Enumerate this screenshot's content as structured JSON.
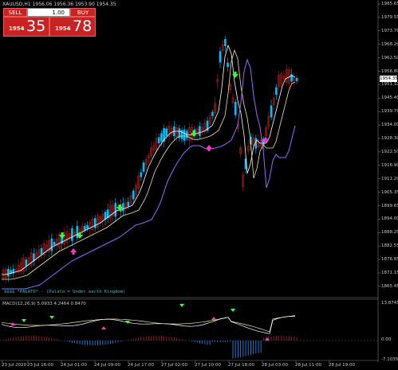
{
  "header": {
    "symbol_line": "XAUUSD,H1  1956.06 1956.36 1953.90 1954.35"
  },
  "trade_panel": {
    "sell_label": "SELL",
    "buy_label": "BUY",
    "lot": "1.00",
    "sell_small": "1954",
    "sell_big": "35",
    "buy_small": "1954",
    "buy_big": "78"
  },
  "price_axis": [
    "1985.65",
    "1979.55",
    "1973.70",
    "1968.20",
    "1962.50",
    "1956.80",
    "1951.10",
    "1945.40",
    "1939.70",
    "1934.00",
    "1928.30",
    "1922.50",
    "1916.90",
    "1911.20",
    "1905.35",
    "1899.65",
    "1894.00",
    "1888.25",
    "1882.55",
    "1876.85",
    "1871.15",
    "1865.45"
  ],
  "current_price": "1954.35",
  "indicator_note": "$$$$ *PALATO* - (Palato = Under earth Kingdom)",
  "macd": {
    "label": "MACD(12,26,9) 5.0933 4.2464 0.8470",
    "axis": [
      "13.8745",
      "0.00",
      "-7.1035"
    ]
  },
  "time_axis": [
    "23 Jul 2020",
    "23 Jul 16:00",
    "24 Jul 01:00",
    "24 Jul 09:00",
    "24 Jul 17:00",
    "27 Jul 02:00",
    "27 Jul 10:00",
    "27 Jul 18:00",
    "28 Jul 03:00",
    "28 Jul 11:00",
    "28 Jul 19:00"
  ],
  "colors": {
    "bull": "#00bfff",
    "bear": "#b22222",
    "ma_fast": "#ffffff",
    "ma_mid": "#f0e68c",
    "ma_slow": "#9966ff",
    "arrow_up": "#ff33cc",
    "arrow_down": "#33ff33",
    "macd_hist_pos": "#b22222",
    "macd_hist_neg": "#1e90ff"
  }
}
